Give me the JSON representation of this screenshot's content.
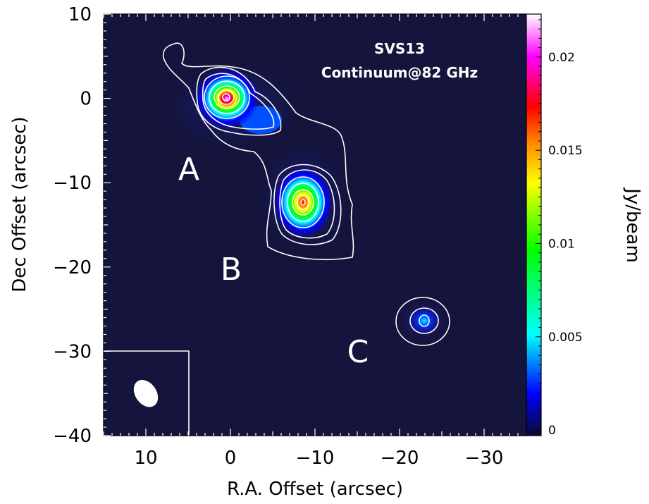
{
  "chart_data": {
    "type": "heatmap",
    "title": "",
    "annotations": [
      "SVS13",
      "Continuum@82 GHz"
    ],
    "xlabel": "R.A. Offset (arcsec)",
    "ylabel": "Dec Offset (arcsec)",
    "xlim": [
      15,
      -35
    ],
    "ylim": [
      -40,
      10
    ],
    "xticks": [
      10,
      0,
      -10,
      -20,
      -30
    ],
    "yticks": [
      10,
      0,
      -10,
      -20,
      -30,
      -40
    ],
    "xtick_labels": [
      "10",
      "0",
      "−10",
      "−20",
      "−30"
    ],
    "ytick_labels": [
      "10",
      "0",
      "−10",
      "−20",
      "−30",
      "−40"
    ],
    "colorbar": {
      "label": "Jy/beam",
      "range": [
        -0.0003,
        0.0223
      ],
      "ticks": [
        0,
        0.005,
        0.01,
        0.015,
        0.02
      ],
      "tick_labels": [
        "0",
        "0.005",
        "0.01",
        "0.015",
        "0.02"
      ],
      "colormap": [
        "#0a0a30",
        "#0000ff",
        "#00ffff",
        "#00ff00",
        "#ffff00",
        "#ff8000",
        "#ff0000",
        "#ff00ff",
        "#ffffff"
      ]
    },
    "sources": [
      {
        "label": "A",
        "ra": 0,
        "dec": 0,
        "peak": 0.021
      },
      {
        "label": "B",
        "ra": -8.5,
        "dec": -12.5,
        "peak": 0.018
      },
      {
        "label": "C",
        "ra": -23,
        "dec": -26.5,
        "peak": 0.004
      }
    ],
    "beam": {
      "ra": 10,
      "dec": -35,
      "major": 3.5,
      "minor": 2.5,
      "pa_deg": 35
    },
    "contour_color": "#ffffff",
    "background_color": "#14143c"
  }
}
